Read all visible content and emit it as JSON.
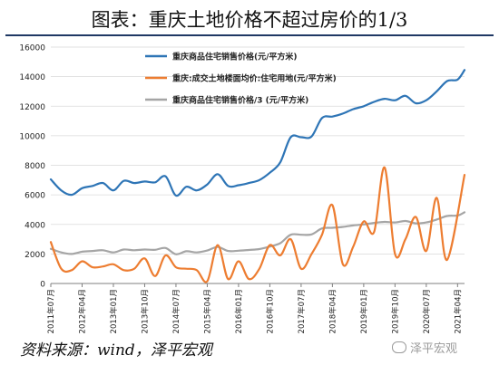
{
  "title": "图表：重庆土地价格不超过房价的1/3",
  "source": "资料来源：wind，泽平宏观",
  "watermark": "泽平宏观",
  "watermark_icon": "wechat-icon",
  "chart_data": {
    "type": "line",
    "title": "图表：重庆土地价格不超过房价的1/3",
    "ylim": [
      0,
      16000
    ],
    "yticks": [
      0,
      2000,
      4000,
      6000,
      8000,
      10000,
      12000,
      14000,
      16000
    ],
    "grid": true,
    "legend_position": "top-left",
    "x_tick_labels": [
      "2011年07月",
      "2012年04月",
      "2013年01月",
      "2013年10月",
      "2014年07月",
      "2015年04月",
      "2016年01月",
      "2016年10月",
      "2017年07月",
      "2018年04月",
      "2019年01月",
      "2019年10月",
      "2020年07月",
      "2021年04月"
    ],
    "x_start": "2011-07",
    "x_end": "2021-06",
    "series": [
      {
        "name": "重庆商品住宅销售价格(元/平方米)",
        "color": "#2e75b6",
        "values": [
          [
            "2011-07",
            7050
          ],
          [
            "2011-10",
            6300
          ],
          [
            "2012-01",
            6000
          ],
          [
            "2012-04",
            6450
          ],
          [
            "2012-07",
            6600
          ],
          [
            "2012-10",
            6800
          ],
          [
            "2013-01",
            6300
          ],
          [
            "2013-04",
            6950
          ],
          [
            "2013-07",
            6800
          ],
          [
            "2013-10",
            6900
          ],
          [
            "2014-01",
            6850
          ],
          [
            "2014-04",
            7250
          ],
          [
            "2014-07",
            5950
          ],
          [
            "2014-10",
            6550
          ],
          [
            "2015-01",
            6300
          ],
          [
            "2015-04",
            6700
          ],
          [
            "2015-07",
            7400
          ],
          [
            "2015-10",
            6600
          ],
          [
            "2016-01",
            6650
          ],
          [
            "2016-04",
            6800
          ],
          [
            "2016-07",
            7000
          ],
          [
            "2016-10",
            7500
          ],
          [
            "2017-01",
            8200
          ],
          [
            "2017-04",
            9900
          ],
          [
            "2017-07",
            9900
          ],
          [
            "2017-10",
            9950
          ],
          [
            "2018-01",
            11200
          ],
          [
            "2018-04",
            11300
          ],
          [
            "2018-07",
            11500
          ],
          [
            "2018-10",
            11800
          ],
          [
            "2019-01",
            12000
          ],
          [
            "2019-04",
            12300
          ],
          [
            "2019-07",
            12500
          ],
          [
            "2019-10",
            12400
          ],
          [
            "2020-01",
            12700
          ],
          [
            "2020-04",
            12200
          ],
          [
            "2020-07",
            12400
          ],
          [
            "2020-10",
            13000
          ],
          [
            "2021-01",
            13700
          ],
          [
            "2021-04",
            13800
          ],
          [
            "2021-06",
            14450
          ]
        ]
      },
      {
        "name": "重庆:成交土地楼面均价:住宅用地(元/平方米)",
        "color": "#ed7d31",
        "values": [
          [
            "2011-07",
            2800
          ],
          [
            "2011-10",
            1000
          ],
          [
            "2012-01",
            900
          ],
          [
            "2012-04",
            1500
          ],
          [
            "2012-07",
            1100
          ],
          [
            "2012-10",
            1150
          ],
          [
            "2013-01",
            1300
          ],
          [
            "2013-04",
            900
          ],
          [
            "2013-07",
            1000
          ],
          [
            "2013-10",
            1700
          ],
          [
            "2014-01",
            500
          ],
          [
            "2014-04",
            1900
          ],
          [
            "2014-07",
            1100
          ],
          [
            "2014-10",
            1000
          ],
          [
            "2015-01",
            900
          ],
          [
            "2015-04",
            150
          ],
          [
            "2015-07",
            2600
          ],
          [
            "2015-10",
            300
          ],
          [
            "2016-01",
            1500
          ],
          [
            "2016-04",
            300
          ],
          [
            "2016-07",
            1000
          ],
          [
            "2016-10",
            2600
          ],
          [
            "2017-01",
            1900
          ],
          [
            "2017-04",
            3000
          ],
          [
            "2017-07",
            1000
          ],
          [
            "2017-10",
            2000
          ],
          [
            "2018-01",
            3300
          ],
          [
            "2018-04",
            5300
          ],
          [
            "2018-07",
            1300
          ],
          [
            "2018-10",
            2500
          ],
          [
            "2019-01",
            4200
          ],
          [
            "2019-04",
            3500
          ],
          [
            "2019-07",
            7850
          ],
          [
            "2019-10",
            2000
          ],
          [
            "2020-01",
            3000
          ],
          [
            "2020-04",
            4500
          ],
          [
            "2020-07",
            2200
          ],
          [
            "2020-10",
            5800
          ],
          [
            "2021-01",
            1600
          ],
          [
            "2021-06",
            7350
          ]
        ]
      },
      {
        "name": "重庆商品住宅销售价格/3 (元/平方米)",
        "color": "#a5a5a5",
        "values": [
          [
            "2011-07",
            2350
          ],
          [
            "2011-10",
            2100
          ],
          [
            "2012-01",
            2000
          ],
          [
            "2012-04",
            2150
          ],
          [
            "2012-07",
            2200
          ],
          [
            "2012-10",
            2250
          ],
          [
            "2013-01",
            2100
          ],
          [
            "2013-04",
            2300
          ],
          [
            "2013-07",
            2250
          ],
          [
            "2013-10",
            2300
          ],
          [
            "2014-01",
            2280
          ],
          [
            "2014-04",
            2400
          ],
          [
            "2014-07",
            1980
          ],
          [
            "2014-10",
            2180
          ],
          [
            "2015-01",
            2100
          ],
          [
            "2015-04",
            2230
          ],
          [
            "2015-07",
            2470
          ],
          [
            "2015-10",
            2200
          ],
          [
            "2016-01",
            2220
          ],
          [
            "2016-04",
            2270
          ],
          [
            "2016-07",
            2330
          ],
          [
            "2016-10",
            2500
          ],
          [
            "2017-01",
            2730
          ],
          [
            "2017-04",
            3300
          ],
          [
            "2017-07",
            3300
          ],
          [
            "2017-10",
            3320
          ],
          [
            "2018-01",
            3730
          ],
          [
            "2018-04",
            3770
          ],
          [
            "2018-07",
            3830
          ],
          [
            "2018-10",
            3930
          ],
          [
            "2019-01",
            4000
          ],
          [
            "2019-04",
            4100
          ],
          [
            "2019-07",
            4170
          ],
          [
            "2019-10",
            4130
          ],
          [
            "2020-01",
            4230
          ],
          [
            "2020-04",
            4070
          ],
          [
            "2020-07",
            4130
          ],
          [
            "2020-10",
            4330
          ],
          [
            "2021-01",
            4570
          ],
          [
            "2021-04",
            4600
          ],
          [
            "2021-06",
            4820
          ]
        ]
      }
    ]
  }
}
